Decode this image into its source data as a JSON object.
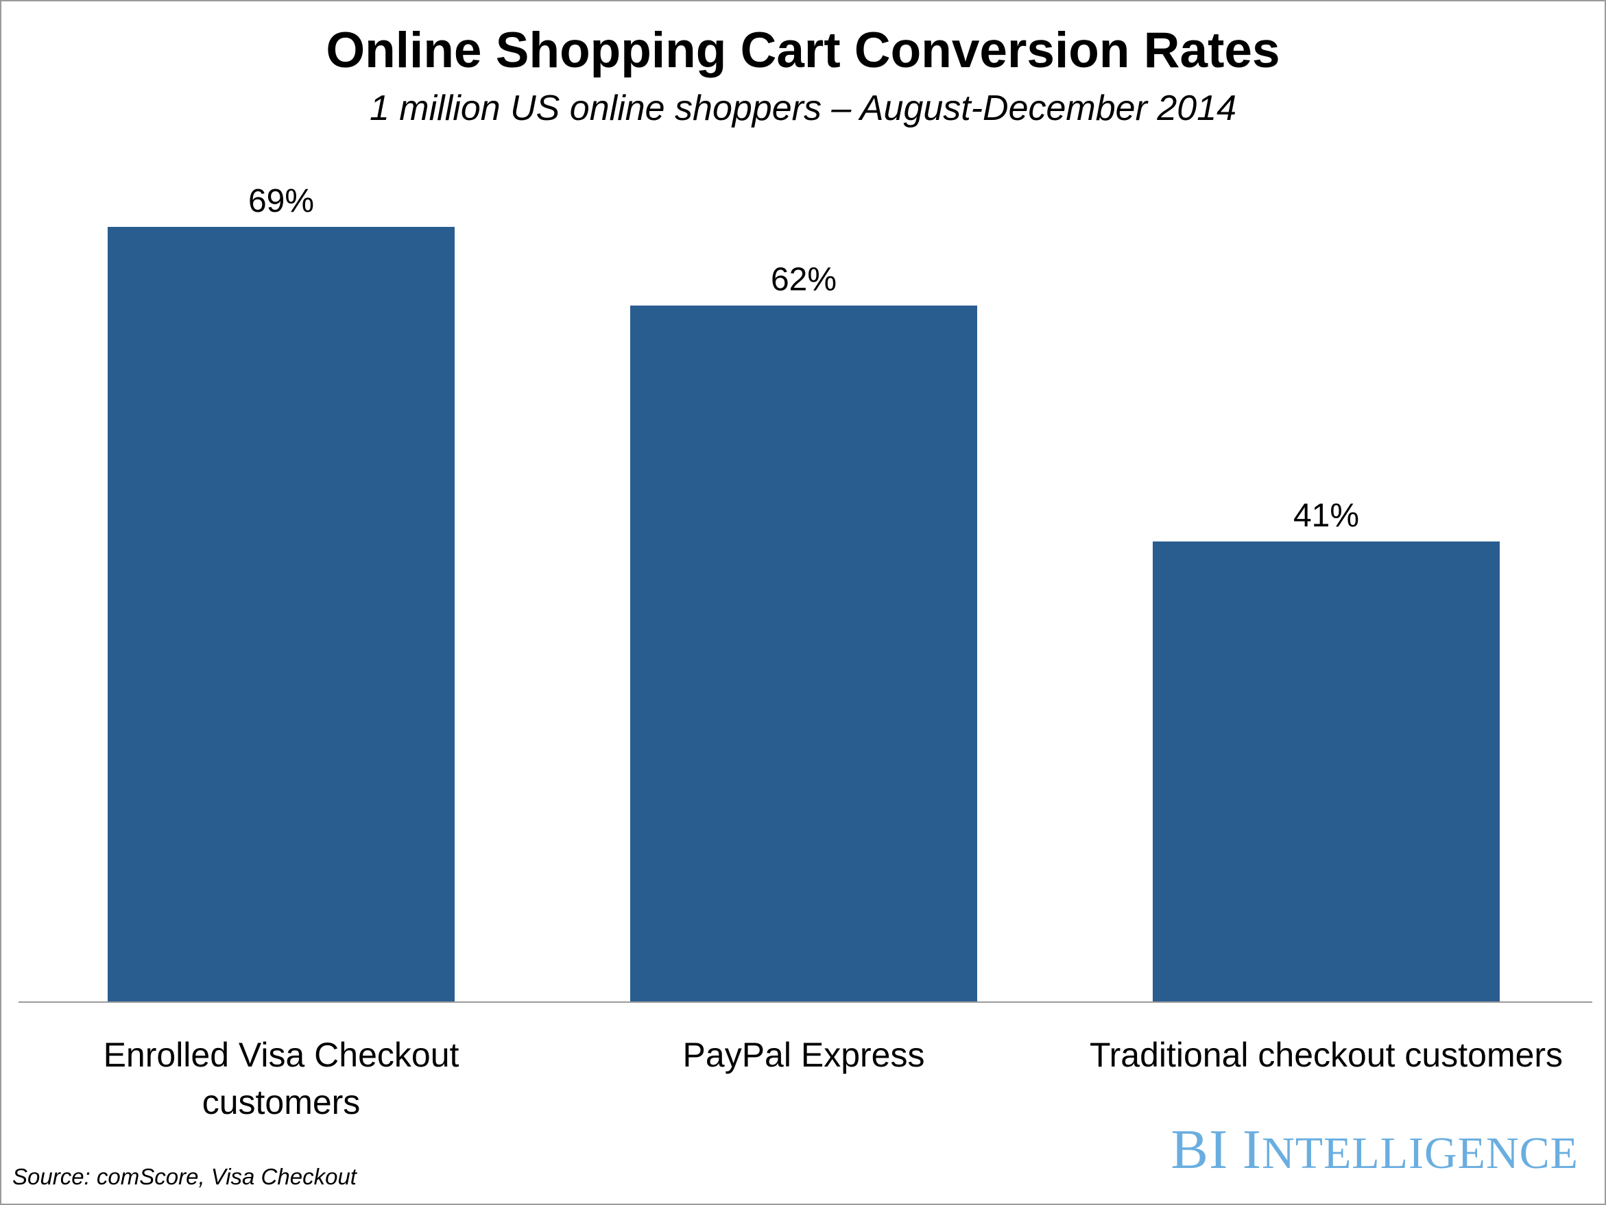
{
  "chart_data": {
    "type": "bar",
    "title": "Online Shopping Cart Conversion Rates",
    "subtitle": "1 million US online shoppers – August-December 2014",
    "categories": [
      [
        "Enrolled Visa Checkout",
        "customers"
      ],
      [
        "PayPal Express"
      ],
      [
        "Traditional checkout customers"
      ]
    ],
    "values": [
      69,
      62,
      41
    ],
    "value_labels": [
      "69%",
      "62%",
      "41%"
    ],
    "unit": "%",
    "xlabel": "",
    "ylabel": "",
    "ylim": [
      0,
      69
    ],
    "grid": false,
    "legend": "none",
    "bar_color": "#2a5d8f",
    "axis_color": "#9a9a9a"
  },
  "footer": {
    "source": "Source: comScore, Visa Checkout",
    "brand_bi": "BI",
    "brand_i": "I",
    "brand_rest": "NTELLIGENCE",
    "brand_color": "#6aaee0"
  }
}
